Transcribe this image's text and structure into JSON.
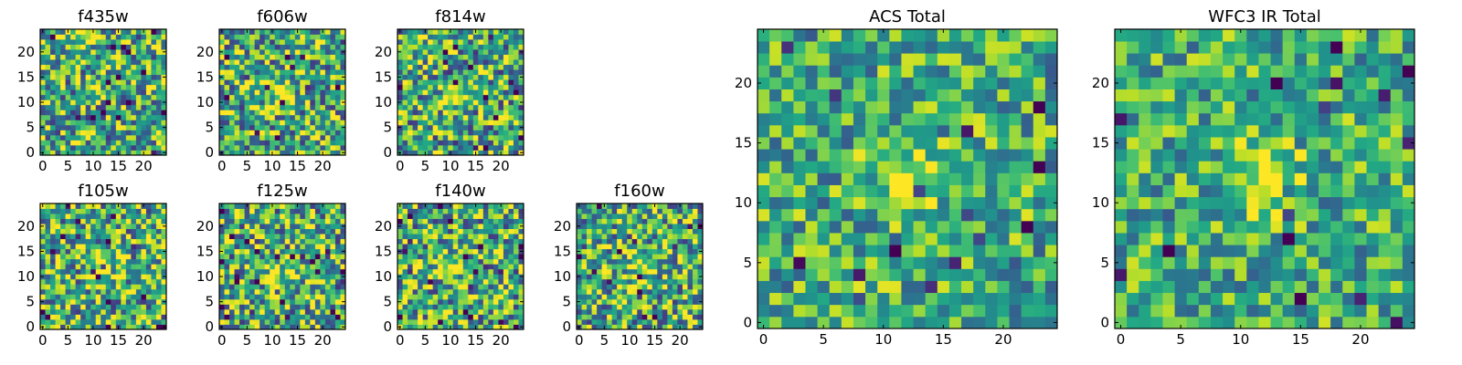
{
  "chart_data": [
    {
      "type": "heatmap",
      "title": "f435w",
      "grid_size": 25,
      "xlim": [
        0,
        24
      ],
      "ylim": [
        0,
        24
      ],
      "xticks": [
        "0",
        "5",
        "10",
        "15",
        "20"
      ],
      "yticks": [
        "0",
        "5",
        "10",
        "15",
        "20"
      ],
      "colormap": "viridis",
      "peak": [
        12,
        13
      ],
      "peak_strength": 0.15,
      "seed": 11,
      "contrast": 1.0
    },
    {
      "type": "heatmap",
      "title": "f606w",
      "grid_size": 25,
      "xlim": [
        0,
        24
      ],
      "ylim": [
        0,
        24
      ],
      "xticks": [
        "0",
        "5",
        "10",
        "15",
        "20"
      ],
      "yticks": [
        "0",
        "5",
        "10",
        "15",
        "20"
      ],
      "colormap": "viridis",
      "peak": [
        11,
        12
      ],
      "peak_strength": 0.35,
      "seed": 23,
      "contrast": 1.0
    },
    {
      "type": "heatmap",
      "title": "f814w",
      "grid_size": 25,
      "xlim": [
        0,
        24
      ],
      "ylim": [
        0,
        24
      ],
      "xticks": [
        "0",
        "5",
        "10",
        "15",
        "20"
      ],
      "yticks": [
        "0",
        "5",
        "10",
        "15",
        "20"
      ],
      "colormap": "viridis",
      "peak": [
        11,
        12
      ],
      "peak_strength": 0.35,
      "seed": 37,
      "contrast": 1.0
    },
    {
      "type": "heatmap",
      "title": "f105w",
      "grid_size": 25,
      "xlim": [
        0,
        24
      ],
      "ylim": [
        0,
        24
      ],
      "xticks": [
        "0",
        "5",
        "10",
        "15",
        "20"
      ],
      "yticks": [
        "0",
        "5",
        "10",
        "15",
        "20"
      ],
      "colormap": "viridis",
      "peak": [
        12,
        13
      ],
      "peak_strength": 0.3,
      "seed": 41,
      "contrast": 1.0
    },
    {
      "type": "heatmap",
      "title": "f125w",
      "grid_size": 25,
      "xlim": [
        0,
        24
      ],
      "ylim": [
        0,
        24
      ],
      "xticks": [
        "0",
        "5",
        "10",
        "15",
        "20"
      ],
      "yticks": [
        "0",
        "5",
        "10",
        "15",
        "20"
      ],
      "colormap": "viridis",
      "peak": [
        11,
        11
      ],
      "peak_strength": 0.3,
      "seed": 53,
      "contrast": 1.0
    },
    {
      "type": "heatmap",
      "title": "f140w",
      "grid_size": 25,
      "xlim": [
        0,
        24
      ],
      "ylim": [
        0,
        24
      ],
      "xticks": [
        "0",
        "5",
        "10",
        "15",
        "20"
      ],
      "yticks": [
        "0",
        "5",
        "10",
        "15",
        "20"
      ],
      "colormap": "viridis",
      "peak": [
        12,
        11
      ],
      "peak_strength": 0.3,
      "seed": 67,
      "contrast": 1.0
    },
    {
      "type": "heatmap",
      "title": "f160w",
      "grid_size": 25,
      "xlim": [
        0,
        24
      ],
      "ylim": [
        0,
        24
      ],
      "xticks": [
        "0",
        "5",
        "10",
        "15",
        "20"
      ],
      "yticks": [
        "0",
        "5",
        "10",
        "15",
        "20"
      ],
      "colormap": "viridis",
      "peak": [
        12,
        12
      ],
      "peak_strength": 0.25,
      "seed": 79,
      "contrast": 1.0
    },
    {
      "type": "heatmap",
      "title": "ACS Total",
      "grid_size": 25,
      "xlim": [
        0,
        24
      ],
      "ylim": [
        0,
        24
      ],
      "xticks": [
        "0",
        "5",
        "10",
        "15",
        "20"
      ],
      "yticks": [
        "0",
        "5",
        "10",
        "15",
        "20"
      ],
      "colormap": "viridis",
      "peak": [
        12,
        12
      ],
      "peak_strength": 0.4,
      "seed": 97,
      "contrast": 0.75
    },
    {
      "type": "heatmap",
      "title": "WFC3 IR Total",
      "grid_size": 25,
      "xlim": [
        0,
        24
      ],
      "ylim": [
        0,
        24
      ],
      "xticks": [
        "0",
        "5",
        "10",
        "15",
        "20"
      ],
      "yticks": [
        "0",
        "5",
        "10",
        "15",
        "20"
      ],
      "colormap": "viridis",
      "peak": [
        12,
        12
      ],
      "peak_strength": 0.45,
      "seed": 113,
      "contrast": 0.7
    }
  ],
  "colors": {
    "frame": "#000000",
    "background": "#ffffff"
  }
}
